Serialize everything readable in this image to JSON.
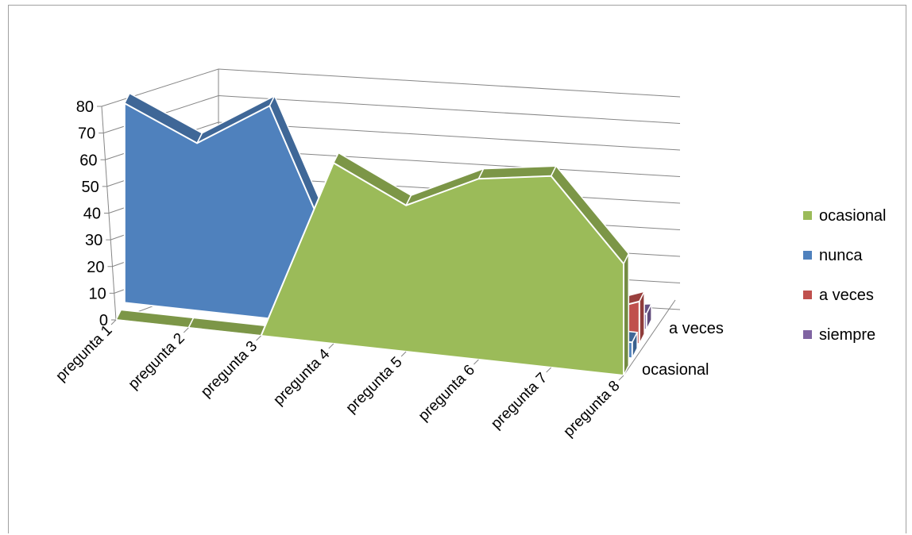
{
  "chart_data": {
    "type": "area",
    "subtype": "3d-area",
    "categories": [
      "pregunta 1",
      "pregunta 2",
      "pregunta 3",
      "pregunta 4",
      "pregunta 5",
      "pregunta 6",
      "pregunta 7",
      "pregunta 8"
    ],
    "series": [
      {
        "name": "ocasional",
        "color": "#9BBB59",
        "values": [
          0,
          0,
          0,
          68,
          55,
          68,
          72,
          42
        ]
      },
      {
        "name": "nunca",
        "color": "#4F81BD",
        "values": [
          75,
          63,
          80,
          20,
          16,
          8,
          6,
          6
        ]
      },
      {
        "name": "a veces",
        "color": "#C0504D",
        "values": [
          0,
          0,
          0,
          3,
          4,
          5,
          6,
          16
        ]
      },
      {
        "name": "siempre",
        "color": "#8064A2",
        "values": [
          0,
          0,
          0,
          1,
          1,
          2,
          2,
          6
        ]
      }
    ],
    "depth_axis_labels": [
      "ocasional",
      "a veces"
    ],
    "y_ticks": [
      "0",
      "10",
      "20",
      "30",
      "40",
      "50",
      "60",
      "70",
      "80"
    ],
    "ylim": [
      0,
      80
    ],
    "grid": true,
    "legend_position": "right"
  }
}
